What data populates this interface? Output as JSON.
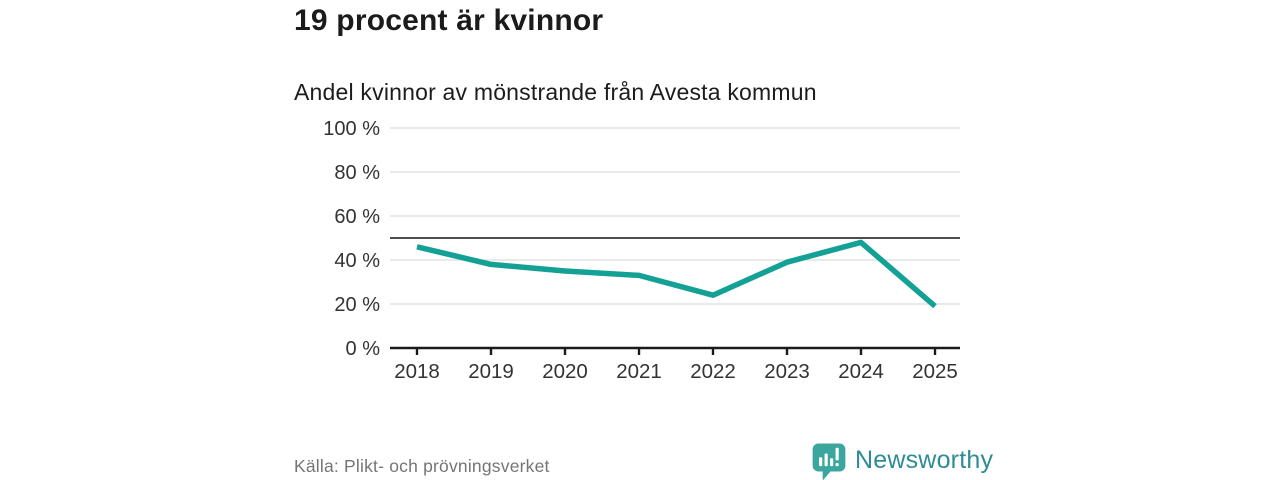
{
  "header": {
    "title": "19 procent är kvinnor",
    "subtitle": "Andel kvinnor av mönstrande från Avesta kommun"
  },
  "chart_data": {
    "type": "line",
    "title": "19 procent är kvinnor",
    "subtitle": "Andel kvinnor av mönstrande från Avesta kommun",
    "series_name": "Andel kvinnor av mönstrande, Avesta kommun",
    "x": [
      "2018",
      "2019",
      "2020",
      "2021",
      "2022",
      "2023",
      "2024",
      "2025"
    ],
    "values": [
      46,
      38,
      35,
      33,
      24,
      39,
      48,
      19
    ],
    "unit": "%",
    "xlabel": "",
    "ylabel": "",
    "ylim": [
      0,
      100
    ],
    "yticks": [
      0,
      20,
      40,
      60,
      80,
      100
    ],
    "ytick_suffix": " %",
    "reference_line": 50,
    "grid": true,
    "legend_position": "none"
  },
  "footer": {
    "source": "Källa: Plikt- och prövningsverket",
    "brand_name": "Newsworthy"
  },
  "icons": {
    "brand_logo": "newsworthy-speech-bubble-bar-chart-icon"
  },
  "colors": {
    "line": "#14a195",
    "grid": "#dcdcdc",
    "reference_line": "#4d4d4d",
    "axis": "#1a1a1a",
    "tick_label": "#333333",
    "title_text": "#1b1b1b",
    "source_text": "#757575",
    "brand_text": "#2e8c96",
    "brand_icon": "#3ba69d",
    "background": "#ffffff"
  }
}
